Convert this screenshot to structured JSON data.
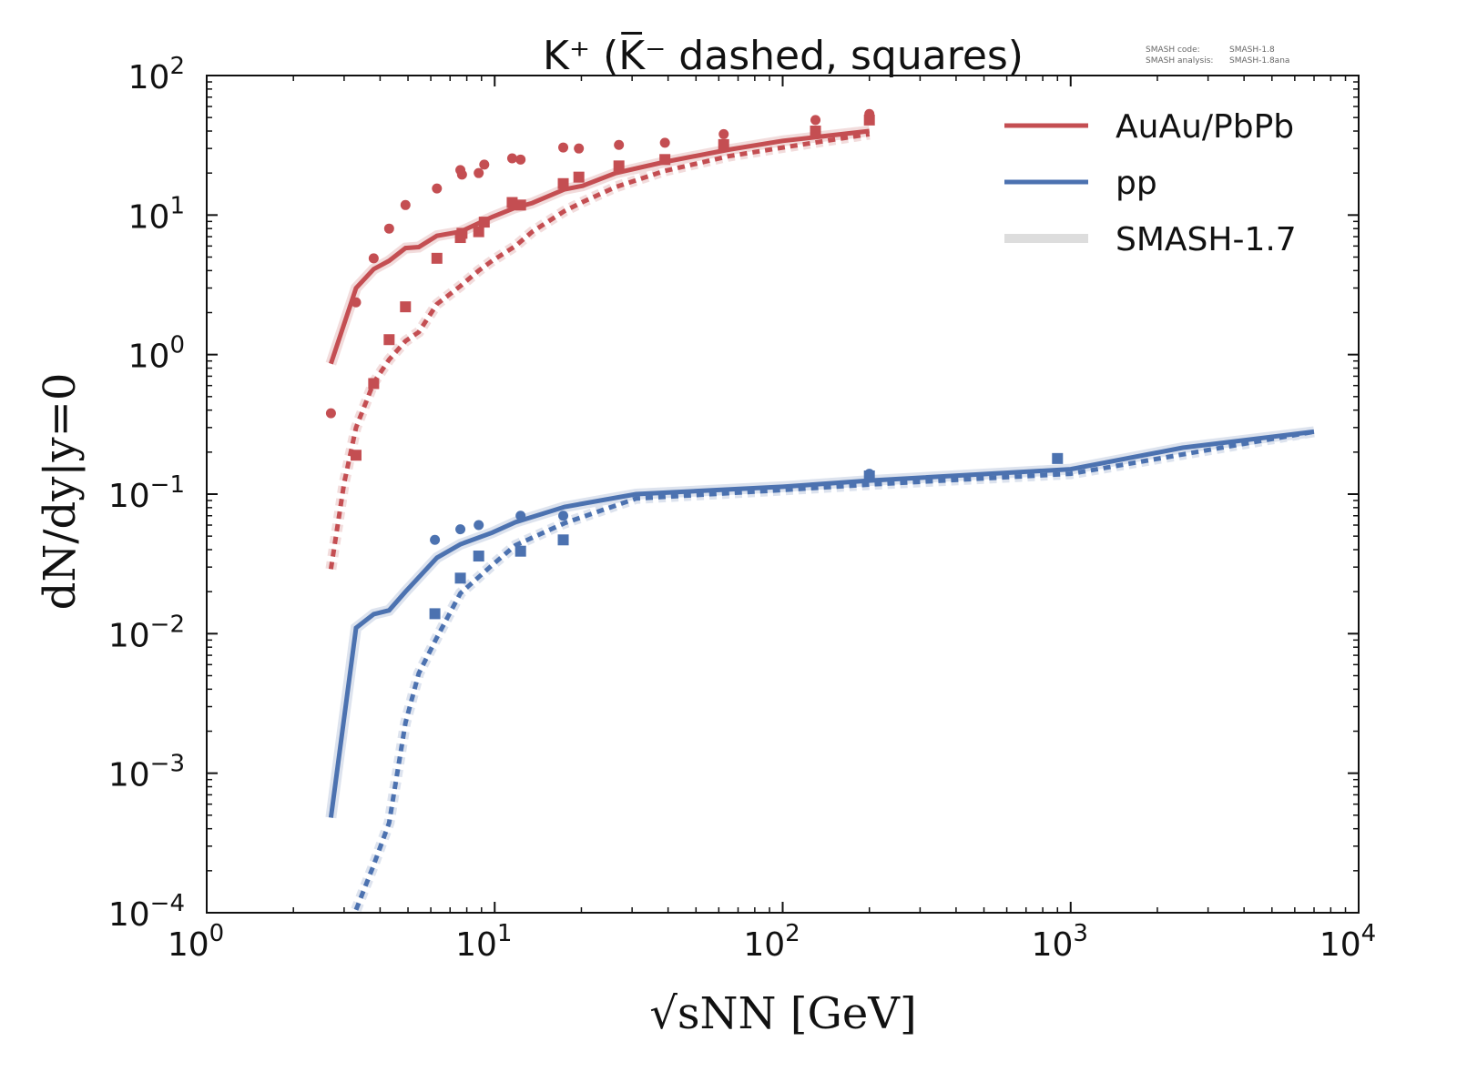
{
  "chart_data": {
    "type": "line",
    "title": "K⁺ (K̅⁻ dashed, squares)",
    "xlabel": "√sNN [GeV]",
    "ylabel": "dN/dy|y=0",
    "xscale": "log",
    "yscale": "log",
    "xlim": [
      1,
      10000
    ],
    "ylim": [
      0.0001,
      100
    ],
    "x_tick_labels": [
      {
        "base": "10",
        "exp": "0"
      },
      {
        "base": "10",
        "exp": "1"
      },
      {
        "base": "10",
        "exp": "2"
      },
      {
        "base": "10",
        "exp": "3"
      },
      {
        "base": "10",
        "exp": "4"
      }
    ],
    "y_tick_labels": [
      {
        "base": "10",
        "exp": "2"
      },
      {
        "base": "10",
        "exp": "1"
      },
      {
        "base": "10",
        "exp": "0"
      },
      {
        "base": "10",
        "exp": "−1"
      },
      {
        "base": "10",
        "exp": "−2"
      },
      {
        "base": "10",
        "exp": "−3"
      },
      {
        "base": "10",
        "exp": "−4"
      }
    ],
    "legend": {
      "placement": "top-right",
      "entries": [
        {
          "label": "AuAu/PbPb",
          "color": "#c44e52"
        },
        {
          "label": "pp",
          "color": "#4c72b0"
        },
        {
          "label": "SMASH-1.7",
          "color": "#dddddd"
        }
      ]
    },
    "series": [
      {
        "name": "AuAu/PbPb K+ (SMASH-1.8)",
        "color": "#c44e52",
        "style": "solid",
        "x": [
          2.7,
          3.3,
          3.8,
          4.3,
          4.9,
          5.45,
          6.3,
          7.6,
          9.8,
          11.8,
          13.5,
          17.5,
          20.2,
          26.3,
          38.9,
          64.8,
          100,
          200
        ],
        "y": [
          0.86,
          3.0,
          4.1,
          4.7,
          5.8,
          5.9,
          7.1,
          7.6,
          9.7,
          11.3,
          12.2,
          15.3,
          16.2,
          20.0,
          24,
          29.4,
          34,
          40
        ]
      },
      {
        "name": "AuAu/PbPb K- (SMASH-1.8)",
        "color": "#c44e52",
        "style": "dashed",
        "x": [
          2.7,
          3.0,
          3.3,
          3.8,
          4.3,
          4.9,
          5.45,
          6.3,
          7.6,
          8.8,
          9.8,
          11.8,
          13.5,
          17.5,
          20.2,
          26.3,
          38.9,
          64.8,
          100,
          200
        ],
        "y": [
          0.029,
          0.12,
          0.3,
          0.63,
          0.92,
          1.25,
          1.45,
          2.3,
          3.1,
          4.0,
          4.7,
          6.0,
          7.6,
          10.7,
          12.4,
          15.9,
          20.7,
          26.4,
          30.5,
          38
        ]
      },
      {
        "name": "pp K+ (SMASH-1.8)",
        "color": "#4c72b0",
        "style": "solid",
        "x": [
          2.7,
          3.3,
          3.8,
          4.3,
          4.9,
          6.3,
          7.6,
          9.8,
          11.8,
          17.5,
          31,
          100,
          200,
          1000,
          2450,
          7000
        ],
        "y": [
          0.00048,
          0.011,
          0.0138,
          0.0147,
          0.02,
          0.035,
          0.0437,
          0.053,
          0.063,
          0.081,
          0.1,
          0.113,
          0.125,
          0.151,
          0.215,
          0.28
        ]
      },
      {
        "name": "pp K- (SMASH-1.8)",
        "color": "#4c72b0",
        "style": "dashed",
        "x": [
          3.3,
          3.8,
          4.3,
          4.9,
          5.45,
          6.3,
          7.6,
          9.8,
          11.8,
          17.5,
          31,
          100,
          200,
          1000,
          7000
        ],
        "y": [
          0.000105,
          0.00022,
          0.00044,
          0.0023,
          0.0052,
          0.0094,
          0.0195,
          0.031,
          0.043,
          0.062,
          0.093,
          0.107,
          0.117,
          0.14,
          0.28
        ]
      }
    ],
    "points": [
      {
        "name": "AuAu/PbPb K+ data",
        "marker": "circle",
        "color": "#c44e52",
        "x": [
          2.7,
          3.3,
          3.8,
          4.3,
          4.9,
          6.3,
          7.6,
          7.7,
          8.8,
          9.2,
          11.5,
          12.3,
          17.3,
          19.6,
          27,
          39,
          62.4,
          130,
          200
        ],
        "y": [
          0.38,
          2.37,
          4.9,
          8.0,
          11.8,
          15.5,
          21,
          19.5,
          20,
          23,
          25.5,
          25,
          30.5,
          30,
          31.8,
          33,
          38,
          48,
          53
        ]
      },
      {
        "name": "AuAu/PbPb K- data",
        "marker": "square",
        "color": "#c44e52",
        "x": [
          3.3,
          3.8,
          4.3,
          4.9,
          6.3,
          7.6,
          7.7,
          8.8,
          9.2,
          11.5,
          12.3,
          17.3,
          19.6,
          27,
          39,
          62.4,
          130,
          200
        ],
        "y": [
          0.19,
          0.62,
          1.28,
          2.2,
          4.9,
          6.9,
          7.4,
          7.6,
          8.9,
          12.3,
          11.8,
          16.8,
          18.7,
          22.5,
          25,
          32,
          40,
          48
        ]
      },
      {
        "name": "pp K+ data",
        "marker": "circle",
        "color": "#4c72b0",
        "x": [
          6.2,
          7.6,
          8.8,
          12.3,
          17.3,
          200
        ],
        "y": [
          0.047,
          0.056,
          0.06,
          0.07,
          0.07,
          0.14
        ]
      },
      {
        "name": "pp K- data",
        "marker": "square",
        "color": "#4c72b0",
        "x": [
          6.2,
          7.6,
          8.8,
          12.3,
          17.3,
          200,
          900
        ],
        "y": [
          0.0139,
          0.025,
          0.036,
          0.039,
          0.047,
          0.135,
          0.18
        ]
      }
    ]
  },
  "meta": {
    "code_label": "SMASH code:",
    "code_value": "SMASH-1.8",
    "analysis_label": "SMASH analysis:",
    "analysis_value": "SMASH-1.8ana"
  }
}
